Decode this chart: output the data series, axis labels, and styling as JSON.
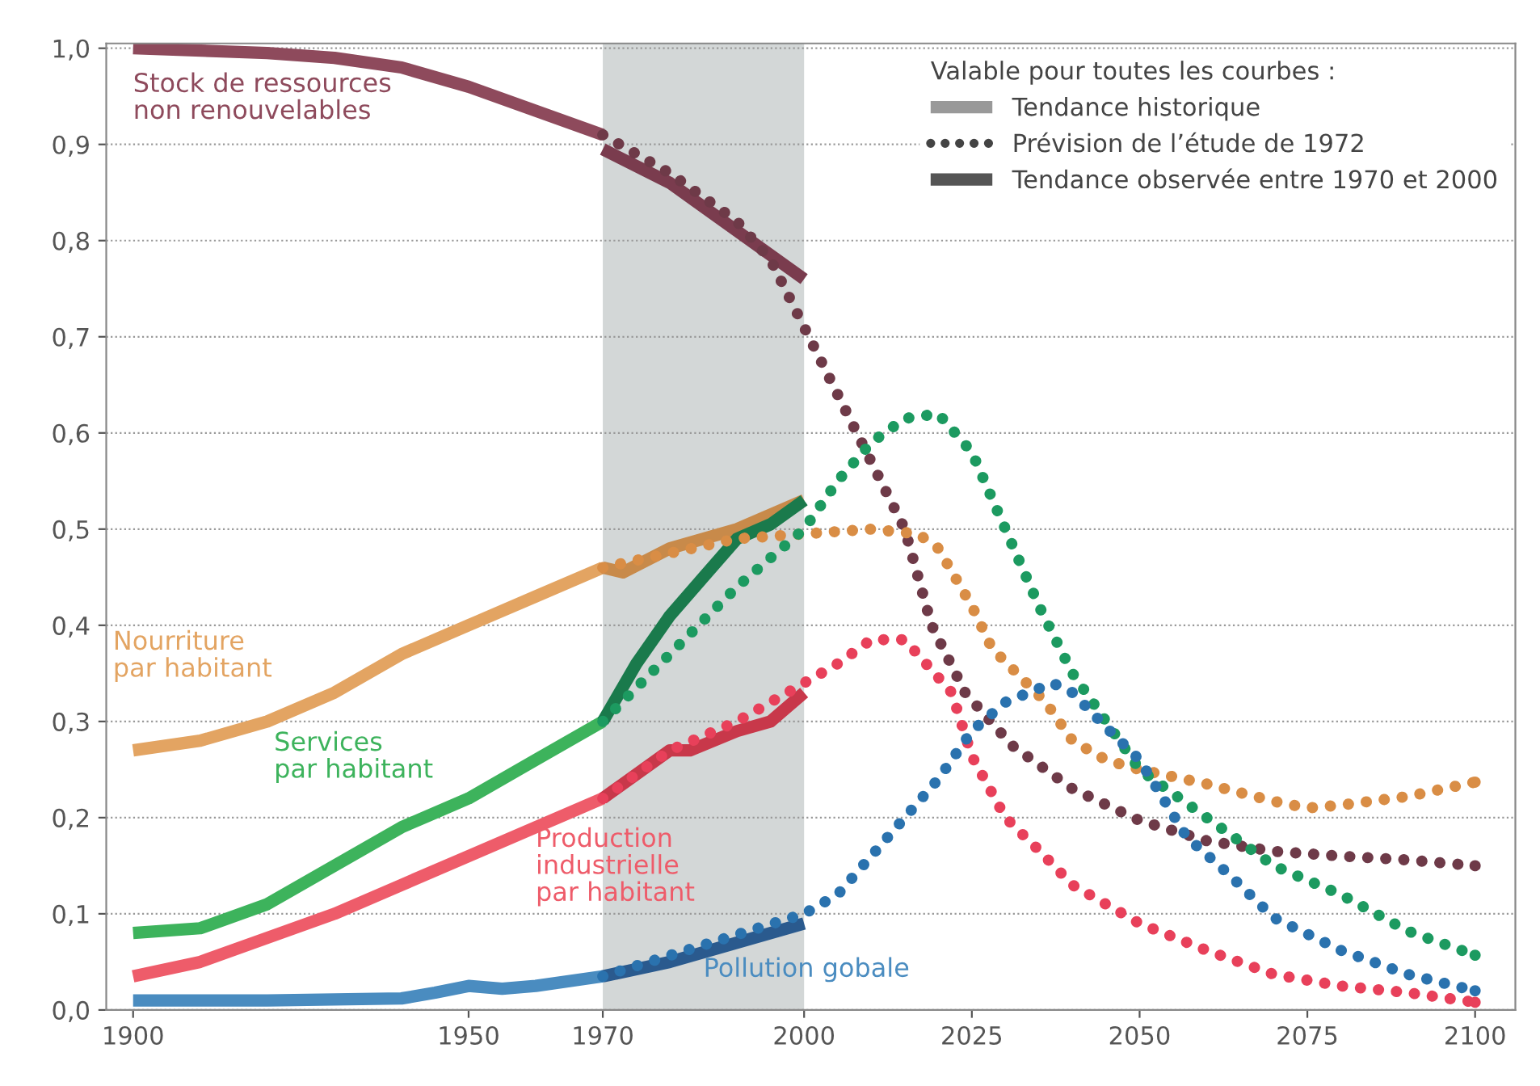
{
  "chart_data": {
    "type": "line",
    "xlim": [
      1896,
      2106
    ],
    "xticks": [
      1900,
      1950,
      1970,
      2000,
      2025,
      2050,
      2075,
      2100
    ],
    "ylim": [
      0,
      1.005
    ],
    "yticks": [
      {
        "value": 0,
        "label": "0,0"
      },
      {
        "value": 0.1,
        "label": "0,1"
      },
      {
        "value": 0.2,
        "label": "0,2"
      },
      {
        "value": 0.3,
        "label": "0,3"
      },
      {
        "value": 0.4,
        "label": "0,4"
      },
      {
        "value": 0.5,
        "label": "0,5"
      },
      {
        "value": 0.6,
        "label": "0,6"
      },
      {
        "value": 0.7,
        "label": "0,7"
      },
      {
        "value": 0.8,
        "label": "0,8"
      },
      {
        "value": 0.9,
        "label": "0,9"
      },
      {
        "value": 1.0,
        "label": "1,0"
      }
    ],
    "grid": "y",
    "legend": "top right",
    "legend_title": "Valable pour toutes les courbes :",
    "bands": [
      {
        "axis": "x",
        "from": 1970,
        "to": 2000,
        "color": "#d3d7d7"
      }
    ],
    "series": [
      {
        "name": "Stock de ressources\nnon renouvelables",
        "color": "#8e4a5c",
        "line_style": "solid",
        "x": [
          1900,
          1920,
          1930,
          1940,
          1950,
          1960,
          1970
        ],
        "values": [
          1.0,
          0.995,
          0.99,
          0.98,
          0.96,
          0.935,
          0.91
        ]
      },
      {
        "color": "#6e3a48",
        "line_style": "dotted",
        "x": [
          1970,
          1980,
          1990,
          1995,
          2000,
          2005,
          2010,
          2015,
          2019,
          2024,
          2031,
          2040,
          2050,
          2060,
          2070,
          2080,
          2090,
          2100
        ],
        "values": [
          0.91,
          0.87,
          0.82,
          0.78,
          0.71,
          0.64,
          0.57,
          0.5,
          0.4,
          0.33,
          0.275,
          0.23,
          0.197,
          0.176,
          0.165,
          0.16,
          0.156,
          0.15
        ]
      },
      {
        "color": "#7a3c4e",
        "line_style": "solid",
        "x": [
          1970,
          1980,
          1990,
          2000
        ],
        "values": [
          0.895,
          0.86,
          0.81,
          0.76
        ]
      },
      {
        "name": "Nourriture\npar habitant",
        "color": "#e3a462",
        "line_style": "solid",
        "x": [
          1900,
          1910,
          1920,
          1930,
          1940,
          1950,
          1960,
          1970
        ],
        "values": [
          0.27,
          0.28,
          0.3,
          0.33,
          0.37,
          0.4,
          0.43,
          0.46
        ]
      },
      {
        "color": "#d98d45",
        "line_style": "dotted",
        "x": [
          1970,
          1980,
          1990,
          2000,
          2010,
          2017,
          2020,
          2025,
          2028,
          2036,
          2040,
          2045,
          2050,
          2060,
          2070,
          2075,
          2080,
          2090,
          2100
        ],
        "values": [
          0.46,
          0.475,
          0.49,
          0.495,
          0.5,
          0.495,
          0.48,
          0.42,
          0.376,
          0.32,
          0.28,
          0.26,
          0.25,
          0.235,
          0.217,
          0.21,
          0.213,
          0.222,
          0.237
        ]
      },
      {
        "color": "#c88a4a",
        "line_style": "solid",
        "x": [
          1970,
          1973,
          1980,
          1990,
          2000
        ],
        "values": [
          0.46,
          0.455,
          0.48,
          0.5,
          0.53
        ]
      },
      {
        "name": "Services\npar habitant",
        "color": "#3db35c",
        "line_style": "solid",
        "x": [
          1900,
          1910,
          1920,
          1930,
          1940,
          1950,
          1960,
          1970
        ],
        "values": [
          0.08,
          0.085,
          0.11,
          0.15,
          0.19,
          0.22,
          0.26,
          0.3
        ]
      },
      {
        "color": "#1c9a60",
        "line_style": "dotted",
        "x": [
          1970,
          1980,
          1990,
          2000,
          2005,
          2010,
          2015,
          2020,
          2025,
          2030,
          2035,
          2040,
          2045,
          2050,
          2060,
          2070,
          2080,
          2090,
          2100
        ],
        "values": [
          0.3,
          0.37,
          0.44,
          0.5,
          0.55,
          0.59,
          0.615,
          0.62,
          0.58,
          0.5,
          0.42,
          0.35,
          0.3,
          0.25,
          0.2,
          0.15,
          0.12,
          0.082,
          0.057
        ]
      },
      {
        "color": "#1a7a4c",
        "line_style": "solid",
        "x": [
          1970,
          1975,
          1980,
          1985,
          1990,
          1995,
          2000
        ],
        "values": [
          0.3,
          0.36,
          0.41,
          0.45,
          0.49,
          0.505,
          0.53
        ]
      },
      {
        "name": "Production\nindustrielle\npar habitant",
        "color": "#ee5c6a",
        "line_style": "solid",
        "x": [
          1900,
          1910,
          1920,
          1930,
          1940,
          1950,
          1960,
          1970
        ],
        "values": [
          0.035,
          0.05,
          0.075,
          0.1,
          0.13,
          0.16,
          0.19,
          0.22
        ]
      },
      {
        "color": "#e8405a",
        "line_style": "dotted",
        "x": [
          1970,
          1980,
          1990,
          2000,
          2005,
          2010,
          2015,
          2022,
          2025,
          2030,
          2035,
          2040,
          2050,
          2060,
          2070,
          2080,
          2090,
          2100
        ],
        "values": [
          0.22,
          0.27,
          0.3,
          0.34,
          0.36,
          0.385,
          0.385,
          0.33,
          0.264,
          0.2,
          0.166,
          0.13,
          0.09,
          0.062,
          0.037,
          0.025,
          0.018,
          0.008
        ]
      },
      {
        "color": "#c8384a",
        "line_style": "solid",
        "x": [
          1970,
          1980,
          1983,
          1990,
          1995,
          2000
        ],
        "values": [
          0.22,
          0.27,
          0.27,
          0.29,
          0.3,
          0.33
        ]
      },
      {
        "name": "Pollution gobale",
        "color": "#4a8cc0",
        "line_style": "solid",
        "x": [
          1900,
          1920,
          1940,
          1945,
          1950,
          1955,
          1960,
          1970
        ],
        "values": [
          0.01,
          0.01,
          0.012,
          0.018,
          0.025,
          0.022,
          0.025,
          0.035
        ]
      },
      {
        "color": "#2a72ae",
        "line_style": "dotted",
        "x": [
          1970,
          2000,
          2005,
          2010,
          2015,
          2020,
          2025,
          2030,
          2037,
          2040,
          2045,
          2050,
          2057,
          2063,
          2070,
          2080,
          2090,
          2100
        ],
        "values": [
          0.035,
          0.1,
          0.12,
          0.16,
          0.2,
          0.24,
          0.29,
          0.32,
          0.34,
          0.33,
          0.294,
          0.26,
          0.18,
          0.143,
          0.096,
          0.062,
          0.037,
          0.02
        ]
      },
      {
        "color": "#2a5a8e",
        "line_style": "solid",
        "x": [
          1970,
          1980,
          1990,
          2000
        ],
        "values": [
          0.035,
          0.05,
          0.07,
          0.09
        ]
      },
      {
        "name": "Tendance historique",
        "color": "#999999",
        "line_style": "solid"
      },
      {
        "name": "Prévision de l’étude de 1972",
        "color": "#444444",
        "line_style": "dotted"
      },
      {
        "name": "Tendance observée entre 1970 et 2000",
        "color": "#555555",
        "line_style": "solid"
      }
    ]
  }
}
